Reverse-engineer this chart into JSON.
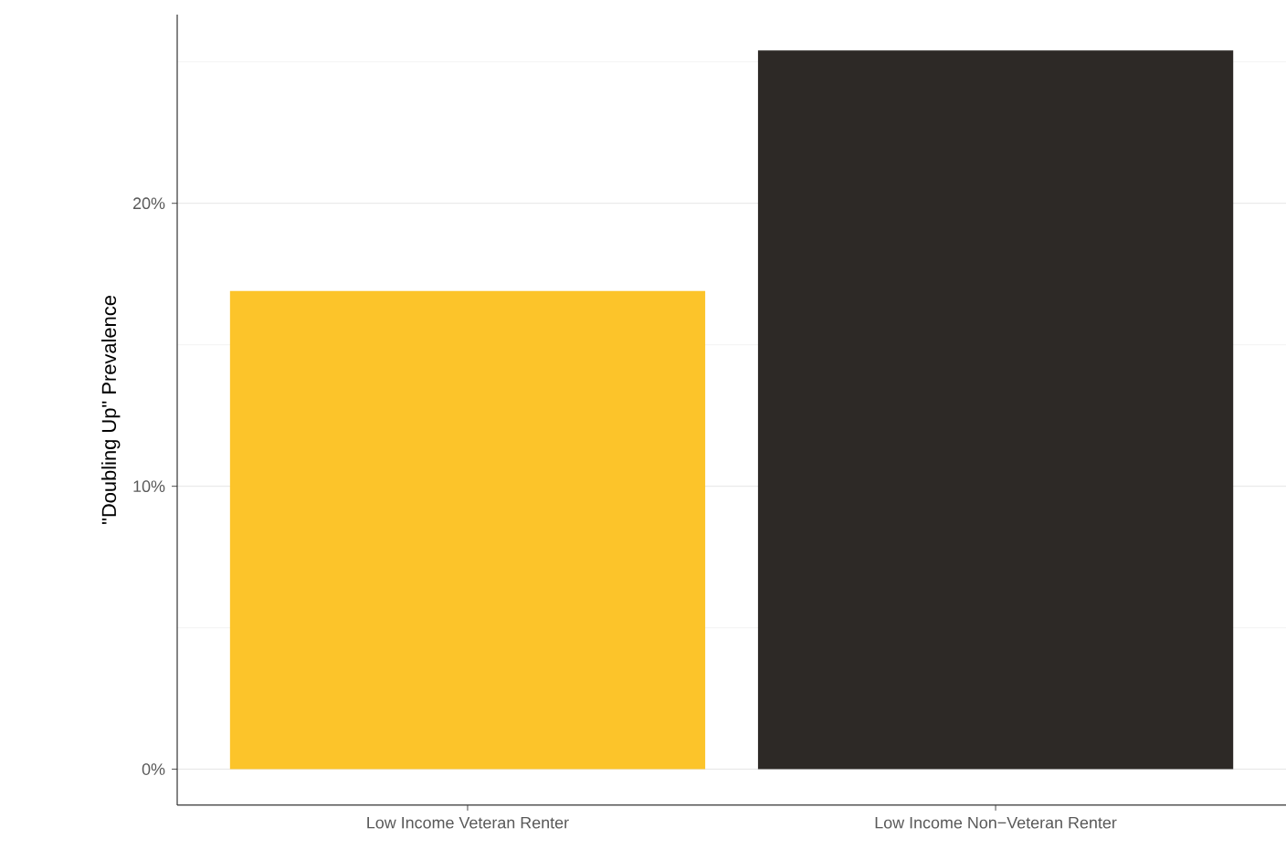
{
  "chart_data": {
    "type": "bar",
    "ylabel": "\"Doubling Up\" Prevalence",
    "categories": [
      "Low Income Veteran Renter",
      "Low Income Non−Veteran Renter"
    ],
    "values": [
      16.9,
      25.4
    ],
    "colors": [
      "#fcc42a",
      "#2d2926"
    ],
    "ylim": [
      -1.27,
      26.67
    ],
    "yticks": [
      {
        "value": 0,
        "label": "0%"
      },
      {
        "value": 5,
        "label": null
      },
      {
        "value": 10,
        "label": "10%"
      },
      {
        "value": 15,
        "label": null
      },
      {
        "value": 20,
        "label": "20%"
      },
      {
        "value": 25,
        "label": null
      }
    ],
    "grid": "y"
  }
}
